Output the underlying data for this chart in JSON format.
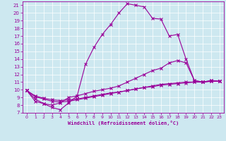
{
  "xlabel": "Windchill (Refroidissement éolien,°C)",
  "background_color": "#cde8f0",
  "grid_color": "#ffffff",
  "line_color": "#990099",
  "xlim": [
    -0.5,
    23.5
  ],
  "ylim": [
    7,
    21.5
  ],
  "xticks": [
    0,
    1,
    2,
    3,
    4,
    5,
    6,
    7,
    8,
    9,
    10,
    11,
    12,
    13,
    14,
    15,
    16,
    17,
    18,
    19,
    20,
    21,
    22,
    23
  ],
  "yticks": [
    7,
    8,
    9,
    10,
    11,
    12,
    13,
    14,
    15,
    16,
    17,
    18,
    19,
    20,
    21
  ],
  "line1_x": [
    0,
    1,
    2,
    3,
    4,
    5,
    6,
    7,
    8,
    9,
    10,
    11,
    12,
    13,
    14,
    15,
    16,
    17,
    18,
    19,
    20,
    21,
    22,
    23
  ],
  "line1_y": [
    9.9,
    8.5,
    8.2,
    7.7,
    7.4,
    8.3,
    9.2,
    13.3,
    15.5,
    17.2,
    18.5,
    20.0,
    21.2,
    21.0,
    20.8,
    19.3,
    19.2,
    17.0,
    17.2,
    14.0,
    11.2,
    11.0,
    11.2,
    11.1
  ],
  "line2_x": [
    0,
    1,
    2,
    3,
    4,
    5,
    6,
    7,
    8,
    9,
    10,
    11,
    12,
    13,
    14,
    15,
    16,
    17,
    18,
    19,
    20,
    21,
    22,
    23
  ],
  "line2_y": [
    9.9,
    8.8,
    8.2,
    8.0,
    8.3,
    9.0,
    9.2,
    9.5,
    9.8,
    10.0,
    10.2,
    10.5,
    11.0,
    11.5,
    12.0,
    12.5,
    12.8,
    13.5,
    13.8,
    13.5,
    11.2,
    11.0,
    11.2,
    11.1
  ],
  "line3_x": [
    0,
    1,
    2,
    3,
    4,
    5,
    6,
    7,
    8,
    9,
    10,
    11,
    12,
    13,
    14,
    15,
    16,
    17,
    18,
    19,
    20,
    21,
    22,
    23
  ],
  "line3_y": [
    9.9,
    9.1,
    8.8,
    8.5,
    8.4,
    8.5,
    8.7,
    8.9,
    9.1,
    9.3,
    9.5,
    9.7,
    9.9,
    10.1,
    10.3,
    10.5,
    10.7,
    10.8,
    10.9,
    11.0,
    11.0,
    11.0,
    11.1,
    11.1
  ],
  "line4_x": [
    0,
    1,
    2,
    3,
    4,
    5,
    6,
    7,
    8,
    9,
    10,
    11,
    12,
    13,
    14,
    15,
    16,
    17,
    18,
    19,
    20,
    21,
    22,
    23
  ],
  "line4_y": [
    9.9,
    9.2,
    8.9,
    8.7,
    8.6,
    8.7,
    8.8,
    9.0,
    9.2,
    9.4,
    9.6,
    9.7,
    9.9,
    10.1,
    10.3,
    10.4,
    10.6,
    10.7,
    10.8,
    10.9,
    11.0,
    11.0,
    11.1,
    11.1
  ]
}
